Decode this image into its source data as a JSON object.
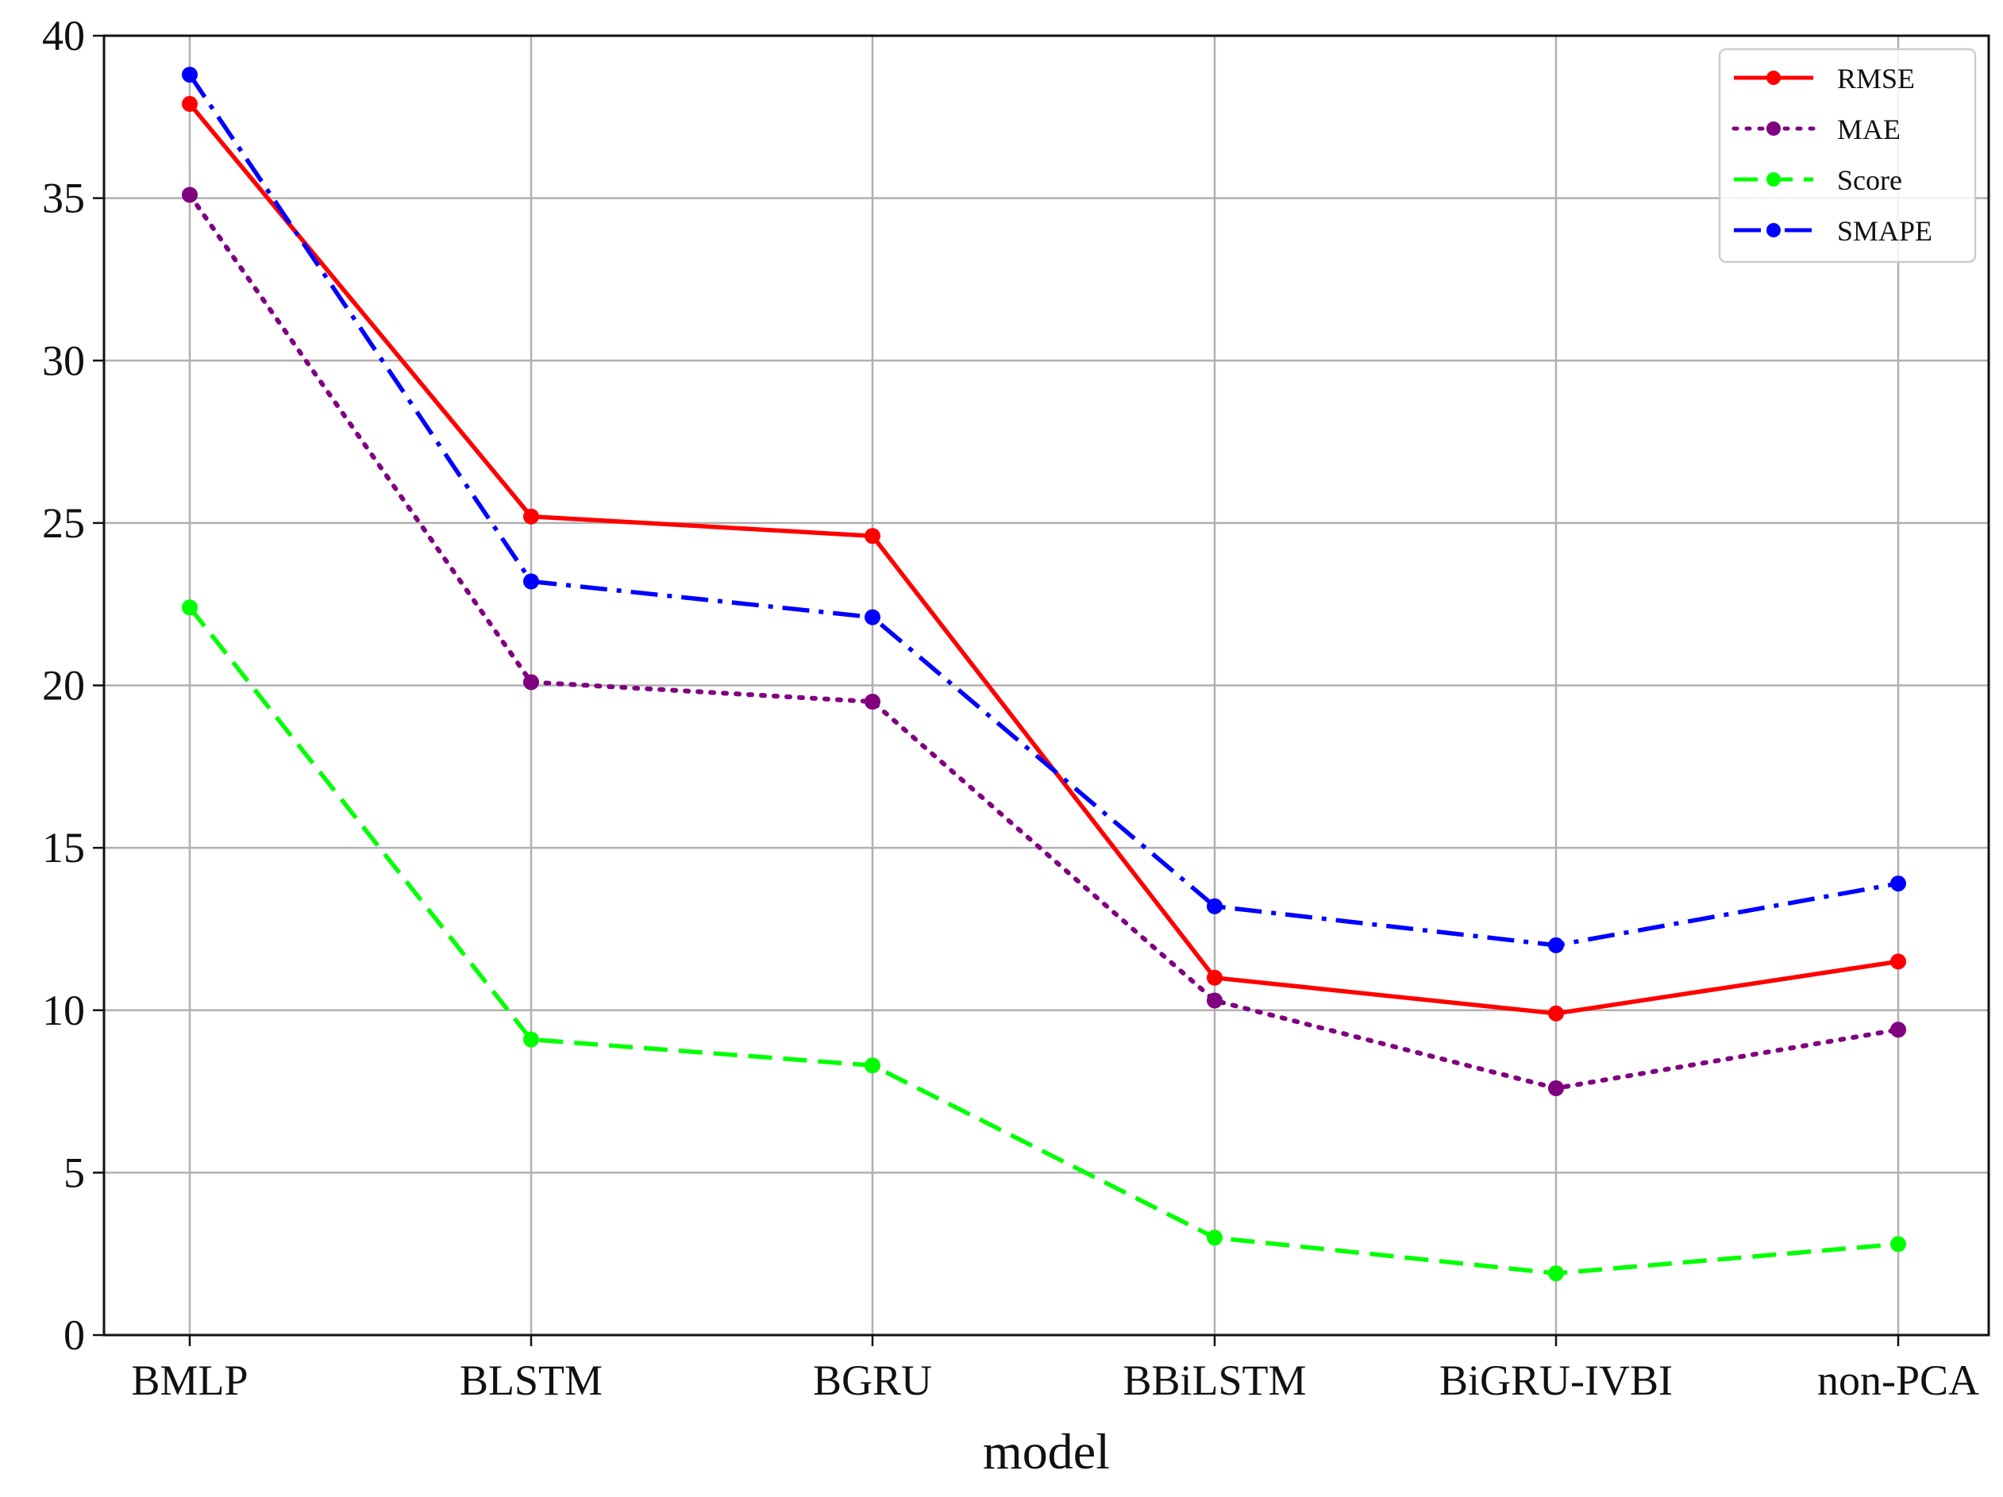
{
  "chart_data": {
    "type": "line",
    "title": "",
    "xlabel": "model",
    "ylabel": "",
    "categories": [
      "BMLP",
      "BLSTM",
      "BGRU",
      "BBiLSTM",
      "BiGRU-IVBI",
      "non-PCA"
    ],
    "ylim": [
      0,
      40
    ],
    "yticks": [
      "0",
      "5",
      "10",
      "15",
      "20",
      "25",
      "30",
      "35",
      "40"
    ],
    "grid": true,
    "legend_position": "top-right",
    "series": [
      {
        "name": "RMSE",
        "color": "#ff0000",
        "line_style": "solid",
        "values": [
          37.9,
          25.2,
          24.6,
          11.0,
          9.9,
          11.5
        ]
      },
      {
        "name": "MAE",
        "color": "#800080",
        "line_style": "dotted",
        "values": [
          35.1,
          20.1,
          19.5,
          10.3,
          7.6,
          9.4
        ]
      },
      {
        "name": "Score",
        "color": "#00ff00",
        "line_style": "dashed",
        "values": [
          22.4,
          9.1,
          8.3,
          3.0,
          1.9,
          2.8
        ]
      },
      {
        "name": "SMAPE",
        "color": "#0000ff",
        "line_style": "dashdot",
        "values": [
          38.8,
          23.2,
          22.1,
          13.2,
          12.0,
          13.9
        ]
      }
    ]
  }
}
